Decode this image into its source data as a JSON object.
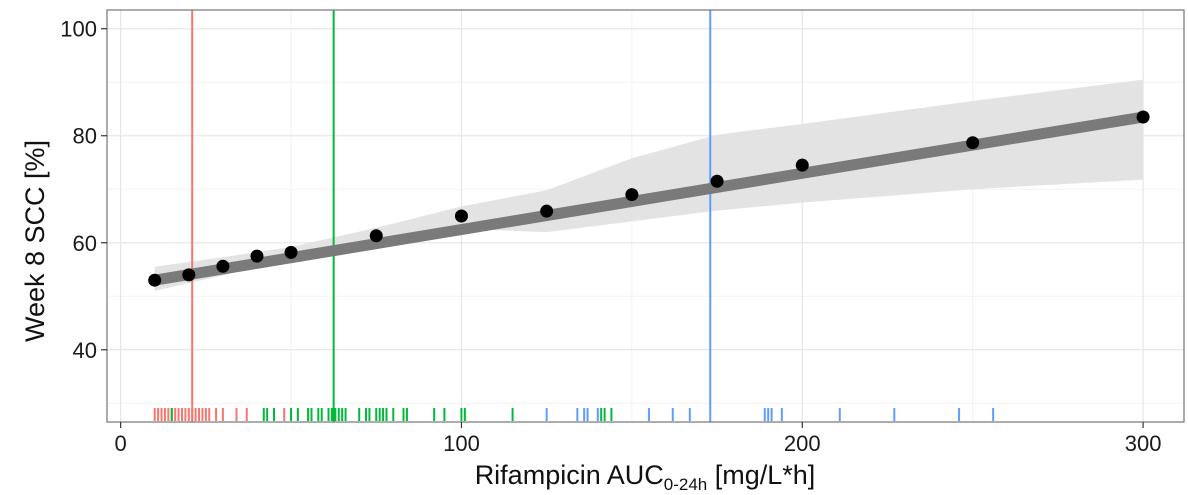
{
  "chart_data": {
    "type": "line",
    "title": "",
    "xlabel": {
      "main": "Rifampicin AUC",
      "subscript": "0-24h",
      "suffix": " [mg/L*h]"
    },
    "ylabel": "Week 8 SCC [%]",
    "xlim": [
      -4,
      312
    ],
    "ylim": [
      26.5,
      103.5
    ],
    "x_ticks": [
      0,
      100,
      200,
      300
    ],
    "y_ticks": [
      40,
      60,
      80,
      100
    ],
    "grid": true,
    "legend": "none",
    "colors": {
      "red": "#F8766D",
      "green": "#00BA38",
      "blue": "#619CFF",
      "fit_line": "#7a7a7a",
      "ribbon": "#e3e3e3",
      "points": "#000000"
    },
    "series": [
      {
        "points": [
          {
            "x": 10,
            "y": 53.0
          },
          {
            "x": 20,
            "y": 54.0
          },
          {
            "x": 30,
            "y": 55.6
          },
          {
            "x": 40,
            "y": 57.5
          },
          {
            "x": 50,
            "y": 58.2
          },
          {
            "x": 75,
            "y": 61.3
          },
          {
            "x": 100,
            "y": 65.0
          },
          {
            "x": 125,
            "y": 65.9
          },
          {
            "x": 150,
            "y": 69.0
          },
          {
            "x": 175,
            "y": 71.5
          },
          {
            "x": 200,
            "y": 74.5
          },
          {
            "x": 250,
            "y": 78.7
          },
          {
            "x": 300,
            "y": 83.5
          }
        ],
        "fit": [
          {
            "x": 10,
            "y": 53.0
          },
          {
            "x": 300,
            "y": 83.5
          }
        ],
        "ci_upper": [
          {
            "x": 10,
            "y": 55.5
          },
          {
            "x": 30,
            "y": 57.3
          },
          {
            "x": 50,
            "y": 59.2
          },
          {
            "x": 75,
            "y": 62.8
          },
          {
            "x": 100,
            "y": 66.8
          },
          {
            "x": 125,
            "y": 69.8
          },
          {
            "x": 150,
            "y": 75.8
          },
          {
            "x": 175,
            "y": 80.2
          },
          {
            "x": 200,
            "y": 82.2
          },
          {
            "x": 250,
            "y": 86.5
          },
          {
            "x": 300,
            "y": 90.5
          }
        ],
        "ci_lower": [
          {
            "x": 300,
            "y": 71.8
          },
          {
            "x": 250,
            "y": 70.0
          },
          {
            "x": 200,
            "y": 67.5
          },
          {
            "x": 175,
            "y": 66.0
          },
          {
            "x": 150,
            "y": 64.0
          },
          {
            "x": 125,
            "y": 62.0
          },
          {
            "x": 100,
            "y": 62.6
          },
          {
            "x": 75,
            "y": 60.0
          },
          {
            "x": 50,
            "y": 57.0
          },
          {
            "x": 30,
            "y": 53.9
          },
          {
            "x": 10,
            "y": 51.0
          }
        ]
      }
    ],
    "vlines": [
      {
        "x": 21,
        "color": "red"
      },
      {
        "x": 62.5,
        "color": "green"
      },
      {
        "x": 173,
        "color": "blue"
      }
    ],
    "rug": [
      {
        "color": "red",
        "x": [
          10,
          11,
          12,
          13,
          14,
          15,
          16,
          17,
          18,
          19,
          20,
          21,
          22,
          23,
          24,
          25,
          26,
          28,
          30,
          34,
          37,
          48
        ]
      },
      {
        "color": "green",
        "x": [
          15,
          42,
          43,
          45,
          50,
          52,
          55,
          56,
          58,
          59,
          61,
          62,
          63,
          64,
          65,
          66,
          70,
          72,
          73,
          75,
          76,
          77,
          78,
          80,
          83,
          84,
          92,
          95,
          100,
          101,
          115,
          141,
          142,
          144
        ]
      },
      {
        "color": "blue",
        "x": [
          125,
          134,
          136,
          137,
          140,
          155,
          162,
          167,
          189,
          190,
          191,
          194,
          211,
          227,
          246,
          256
        ]
      }
    ]
  }
}
